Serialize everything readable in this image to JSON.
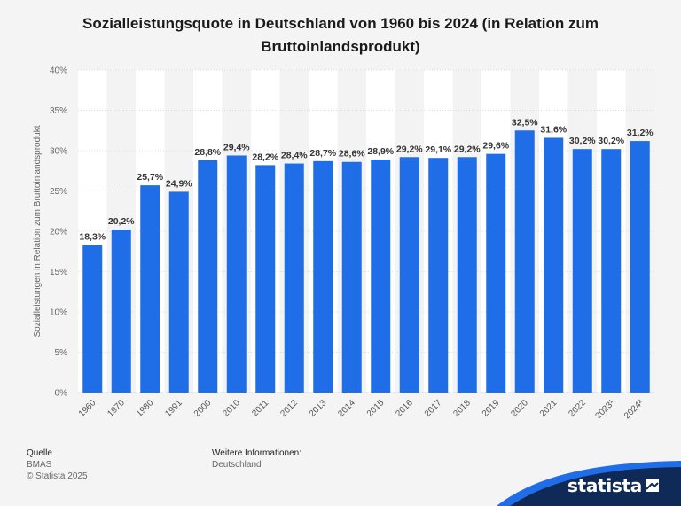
{
  "title_line1": "Sozialleistungsquote in Deutschland von 1960 bis 2024 (in Relation zum",
  "title_line2": "Bruttoinlandsprodukt)",
  "chart_data": {
    "type": "bar",
    "title": "Sozialleistungsquote in Deutschland von 1960 bis 2024 (in Relation zum Bruttoinlandsprodukt)",
    "categories": [
      "1960",
      "1970",
      "1980",
      "1991",
      "2000",
      "2010",
      "2011",
      "2012",
      "2013",
      "2014",
      "2015",
      "2016",
      "2017",
      "2018",
      "2019",
      "2020",
      "2021",
      "2022",
      "2023¹",
      "2024²"
    ],
    "values": [
      18.3,
      20.2,
      25.7,
      24.9,
      28.8,
      29.4,
      28.2,
      28.4,
      28.7,
      28.6,
      28.9,
      29.2,
      29.1,
      29.2,
      29.6,
      32.5,
      31.6,
      30.2,
      30.2,
      31.2
    ],
    "value_labels": [
      "18,3%",
      "20,2%",
      "25,7%",
      "24,9%",
      "28,8%",
      "29,4%",
      "28,2%",
      "28,4%",
      "28,7%",
      "28,6%",
      "28,9%",
      "29,2%",
      "29,1%",
      "29,2%",
      "29,6%",
      "32,5%",
      "31,6%",
      "30,2%",
      "30,2%",
      "31,2%"
    ],
    "ylabel": "Sozialleistungen in Relation zum Bruttoinlandsprodukt",
    "xlabel": "",
    "ylim": [
      0,
      40
    ],
    "yticks": [
      0,
      5,
      10,
      15,
      20,
      25,
      30,
      35,
      40
    ],
    "ytick_labels": [
      "0%",
      "5%",
      "10%",
      "15%",
      "20%",
      "25%",
      "30%",
      "35%",
      "40%"
    ],
    "grid": true,
    "bar_color": "#1f6ee8"
  },
  "footer": {
    "source_heading": "Quelle",
    "source": "BMAS",
    "copyright": "© Statista 2025",
    "info_heading": "Weitere Informationen:",
    "info": "Deutschland"
  },
  "logo": "statista",
  "colors": {
    "bar": "#1f6ee8",
    "brand": "#0f2a56",
    "accent": "#1f6ee8"
  }
}
